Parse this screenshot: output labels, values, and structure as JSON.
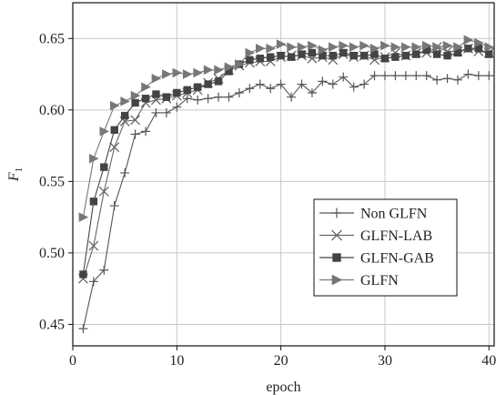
{
  "chart_data": {
    "type": "line",
    "xlabel": "epoch",
    "ylabel": "F",
    "ylabel_sub": "1",
    "xlim": [
      0,
      40.5
    ],
    "ylim": [
      0.435,
      0.675
    ],
    "xticks": [
      0,
      10,
      20,
      30,
      40
    ],
    "yticks": [
      0.45,
      0.5,
      0.55,
      0.6,
      0.65
    ],
    "xtick_labels": [
      "0",
      "10",
      "20",
      "30",
      "40"
    ],
    "ytick_labels": [
      "0.45",
      "0.50",
      "0.55",
      "0.60",
      "0.65"
    ],
    "grid": true,
    "legend_position": "bottom-right",
    "x": [
      1,
      2,
      3,
      4,
      5,
      6,
      7,
      8,
      9,
      10,
      11,
      12,
      13,
      14,
      15,
      16,
      17,
      18,
      19,
      20,
      21,
      22,
      23,
      24,
      25,
      26,
      27,
      28,
      29,
      30,
      31,
      32,
      33,
      34,
      35,
      36,
      37,
      38,
      39,
      40
    ],
    "series": [
      {
        "name": "Non GLFN",
        "marker": "plus",
        "color": "#555555",
        "values": [
          0.447,
          0.48,
          0.488,
          0.533,
          0.556,
          0.583,
          0.585,
          0.598,
          0.598,
          0.602,
          0.608,
          0.607,
          0.608,
          0.609,
          0.609,
          0.612,
          0.615,
          0.618,
          0.615,
          0.618,
          0.609,
          0.618,
          0.612,
          0.62,
          0.618,
          0.623,
          0.616,
          0.618,
          0.624,
          0.624,
          0.624,
          0.624,
          0.624,
          0.624,
          0.621,
          0.622,
          0.621,
          0.625,
          0.624,
          0.624
        ]
      },
      {
        "name": "GLFN-LAB",
        "marker": "x",
        "color": "#666666",
        "values": [
          0.482,
          0.505,
          0.543,
          0.574,
          0.592,
          0.593,
          0.605,
          0.607,
          0.608,
          0.61,
          0.612,
          0.614,
          0.619,
          0.622,
          0.628,
          0.631,
          0.633,
          0.634,
          0.634,
          0.637,
          0.638,
          0.638,
          0.636,
          0.637,
          0.635,
          0.639,
          0.637,
          0.638,
          0.635,
          0.637,
          0.64,
          0.638,
          0.64,
          0.64,
          0.644,
          0.641,
          0.641,
          0.643,
          0.641,
          0.64
        ]
      },
      {
        "name": "GLFN-GAB",
        "marker": "square",
        "color": "#444444",
        "values": [
          0.485,
          0.536,
          0.56,
          0.586,
          0.596,
          0.605,
          0.608,
          0.611,
          0.609,
          0.612,
          0.614,
          0.616,
          0.618,
          0.62,
          0.627,
          0.632,
          0.635,
          0.636,
          0.637,
          0.638,
          0.637,
          0.639,
          0.64,
          0.638,
          0.638,
          0.64,
          0.638,
          0.638,
          0.639,
          0.636,
          0.637,
          0.638,
          0.639,
          0.642,
          0.639,
          0.638,
          0.64,
          0.643,
          0.643,
          0.639
        ]
      },
      {
        "name": "GLFN",
        "marker": "triangle-right",
        "color": "#777777",
        "values": [
          0.525,
          0.566,
          0.585,
          0.603,
          0.606,
          0.61,
          0.616,
          0.622,
          0.625,
          0.626,
          0.625,
          0.626,
          0.628,
          0.628,
          0.63,
          0.632,
          0.64,
          0.643,
          0.643,
          0.646,
          0.644,
          0.644,
          0.645,
          0.642,
          0.644,
          0.645,
          0.644,
          0.645,
          0.643,
          0.645,
          0.644,
          0.644,
          0.644,
          0.645,
          0.644,
          0.645,
          0.644,
          0.649,
          0.647,
          0.644
        ]
      }
    ]
  }
}
